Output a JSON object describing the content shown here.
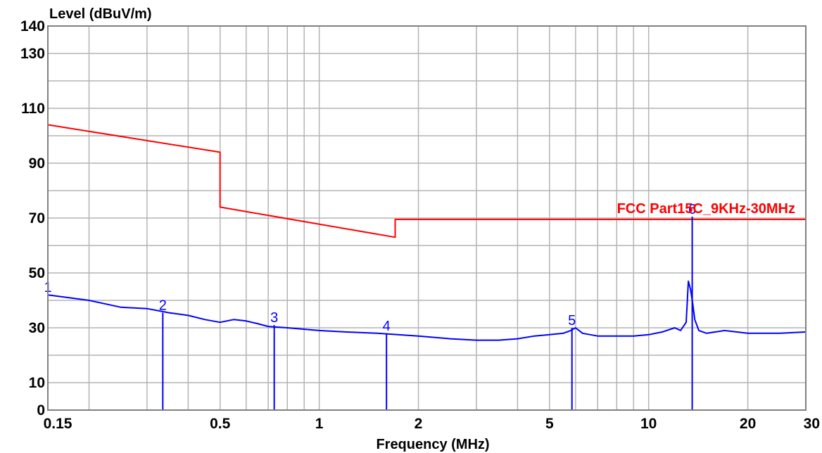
{
  "chart_data": {
    "type": "line",
    "title": "",
    "ylabel": "Level (dBuV/m)",
    "xlabel": "Frequency (MHz)",
    "x_scale": "log",
    "xlim": [
      0.15,
      30
    ],
    "ylim": [
      0,
      140
    ],
    "grid": true,
    "x_ticks": [
      {
        "value": 0.15,
        "label": "0.15"
      },
      {
        "value": 0.5,
        "label": "0.5"
      },
      {
        "value": 1,
        "label": "1"
      },
      {
        "value": 2,
        "label": "2"
      },
      {
        "value": 5,
        "label": "5"
      },
      {
        "value": 10,
        "label": "10"
      },
      {
        "value": 20,
        "label": "20"
      },
      {
        "value": 30,
        "label": "30"
      }
    ],
    "y_ticks": [
      {
        "value": 0,
        "label": "0"
      },
      {
        "value": 10,
        "label": "10"
      },
      {
        "value": 30,
        "label": "30"
      },
      {
        "value": 50,
        "label": "50"
      },
      {
        "value": 70,
        "label": "70"
      },
      {
        "value": 90,
        "label": "90"
      },
      {
        "value": 110,
        "label": "110"
      },
      {
        "value": 130,
        "label": "130"
      },
      {
        "value": 140,
        "label": "140"
      }
    ],
    "series": [
      {
        "name": "FCC Part15C_9KHz-30MHz",
        "color": "#ff0000",
        "points": [
          [
            0.15,
            104
          ],
          [
            0.5,
            94
          ],
          [
            0.5,
            74
          ],
          [
            1.7,
            63
          ],
          [
            1.7,
            69.5
          ],
          [
            30,
            69.5
          ]
        ]
      },
      {
        "name": "",
        "color": "#0000ff",
        "points": [
          [
            0.15,
            42
          ],
          [
            0.2,
            40
          ],
          [
            0.25,
            37.5
          ],
          [
            0.3,
            37
          ],
          [
            0.35,
            35.5
          ],
          [
            0.4,
            34.5
          ],
          [
            0.45,
            33
          ],
          [
            0.5,
            32
          ],
          [
            0.55,
            33
          ],
          [
            0.6,
            32.5
          ],
          [
            0.65,
            31.5
          ],
          [
            0.7,
            30.5
          ],
          [
            0.8,
            30
          ],
          [
            1.0,
            29
          ],
          [
            1.2,
            28.5
          ],
          [
            1.5,
            28
          ],
          [
            2.0,
            27
          ],
          [
            2.5,
            26
          ],
          [
            3.0,
            25.5
          ],
          [
            3.5,
            25.5
          ],
          [
            4.0,
            26
          ],
          [
            4.5,
            27
          ],
          [
            5.0,
            27.5
          ],
          [
            5.5,
            28
          ],
          [
            5.8,
            29
          ],
          [
            6.0,
            30
          ],
          [
            6.3,
            28
          ],
          [
            7,
            27
          ],
          [
            8,
            27
          ],
          [
            9,
            27
          ],
          [
            10,
            27.5
          ],
          [
            11,
            28.5
          ],
          [
            12,
            30
          ],
          [
            12.5,
            29
          ],
          [
            13,
            32
          ],
          [
            13.2,
            47
          ],
          [
            13.4,
            44
          ],
          [
            13.6,
            39
          ],
          [
            13.8,
            33
          ],
          [
            14.2,
            29
          ],
          [
            15,
            28
          ],
          [
            17,
            29
          ],
          [
            20,
            28
          ],
          [
            25,
            28
          ],
          [
            30,
            28.5
          ]
        ]
      }
    ],
    "markers": [
      {
        "label": "1",
        "x": 0.15,
        "y": 42
      },
      {
        "label": "2",
        "x": 0.335,
        "y": 35.5
      },
      {
        "label": "3",
        "x": 0.73,
        "y": 31
      },
      {
        "label": "4",
        "x": 1.6,
        "y": 28
      },
      {
        "label": "5",
        "x": 5.85,
        "y": 30
      },
      {
        "label": "6",
        "x": 13.56,
        "y": 70.5
      }
    ],
    "limit_label": "FCC Part15C_9KHz-30MHz",
    "colors": {
      "limit": "#ff0000",
      "trace": "#0000ff",
      "grid": "#b4b4b4",
      "frame": "#808080"
    }
  }
}
